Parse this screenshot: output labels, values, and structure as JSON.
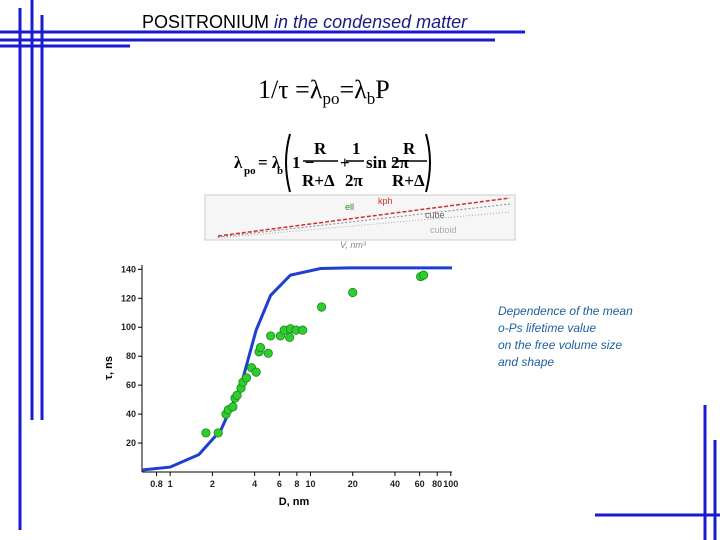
{
  "header": {
    "title": "POSITRONIUM",
    "title_italic": "in the condensed matter"
  },
  "equation": {
    "lhs": "1/τ =λ",
    "sub1": "po",
    "mid": "=λ",
    "sub2": "b",
    "end": "P"
  },
  "formula": {
    "lambda": "λ",
    "lambda_sub": "po",
    "eq": "= λ",
    "b_sub": "b",
    "one": "1 −",
    "r1": "R",
    "d1": "R+Δ",
    "plus": "+",
    "n2": "1",
    "d2": "2π",
    "sin": "sin 2π",
    "r3": "R",
    "d3": "R+Δ"
  },
  "inset": {
    "labels": [
      "ell",
      "kph",
      "cube",
      "cuboid"
    ],
    "xlabel": "V, nm³"
  },
  "caption": [
    "Dependence of the mean",
    "o-Ps lifetime value",
    "on the free volume size",
    "and shape"
  ],
  "chart_data": {
    "type": "scatter",
    "xscale": "log",
    "xlabel": "D, nm",
    "ylabel": "τ, ns",
    "xlim": [
      0.63,
      102
    ],
    "ylim": [
      0,
      143
    ],
    "xticks": [
      0.8,
      1,
      2,
      4,
      6,
      8,
      10,
      20,
      40,
      60,
      80,
      100
    ],
    "yticks": [
      20,
      40,
      60,
      80,
      100,
      120,
      140
    ],
    "series": [
      {
        "mode": "line",
        "color": "#1f3fd0",
        "x": [
          0.63,
          1,
          1.6,
          2.3,
          3.2,
          4.1,
          5.2,
          7.2,
          11.8,
          19,
          102
        ],
        "values": [
          1.4,
          3.4,
          12,
          29,
          60,
          98,
          122,
          136,
          140.6,
          141,
          141
        ]
      },
      {
        "mode": "scatter",
        "color": "#2ecc2e",
        "x": [
          1.8,
          2.2,
          2.5,
          2.6,
          2.8,
          2.9,
          3.0,
          3.2,
          3.3,
          3.5,
          3.8,
          4.1,
          4.3,
          4.4,
          5.0,
          5.2,
          6.1,
          6.5,
          7.2,
          7.9,
          8.8,
          7.1,
          12,
          20,
          61,
          64
        ],
        "values": [
          27,
          27,
          40,
          43,
          45,
          51,
          53,
          58,
          62,
          65,
          72,
          69,
          83,
          86,
          82,
          94,
          94,
          98,
          99,
          98,
          98,
          93,
          114,
          124,
          135,
          136
        ]
      }
    ]
  }
}
